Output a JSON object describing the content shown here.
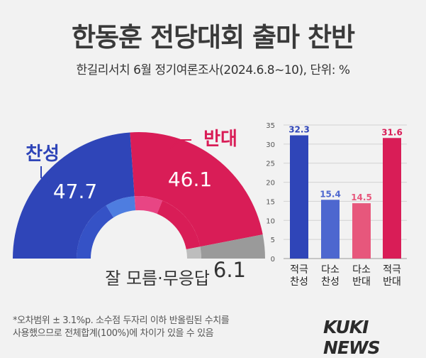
{
  "title": "한동훈 전당대회 출마 찬반",
  "subtitle": "한길리서치 6월 정기여론조사(2024.6.8~10), 단위: %",
  "footnote": {
    "line1": "*오차범위 ± 3.1%p. 소수점 두자리 이하 반올림된 수치를",
    "line2": "사용했으므로 전체합계(100%)에 차이가 있을 수 있음"
  },
  "brand": "KUKI NEWS",
  "colors": {
    "support": "#2f45b8",
    "oppose": "#d91d57",
    "unsure": "#9a9a9a",
    "mild_support": "#4d67cf",
    "mild_oppose": "#e7577c"
  },
  "chart_data": [
    {
      "type": "pie",
      "labels": [
        "찬성",
        "반대",
        "잘 모름·무응답"
      ],
      "values": [
        47.7,
        46.1,
        6.1
      ],
      "value_labels": [
        "47.7",
        "46.1",
        "6.1"
      ],
      "inner_split": {
        "labels": [
          "적극 찬성",
          "다소 찬성",
          "다소 반대",
          "적극 반대"
        ],
        "values": [
          32.3,
          15.4,
          14.5,
          31.6
        ]
      }
    },
    {
      "type": "bar",
      "categories": [
        "적극\n찬성",
        "다소\n찬성",
        "다소\n반대",
        "적극\n반대"
      ],
      "values": [
        32.3,
        15.4,
        14.5,
        31.6
      ],
      "value_labels": [
        "32.3",
        "15.4",
        "14.5",
        "31.6"
      ],
      "ylim": [
        0,
        35
      ],
      "yticks": [
        "0",
        "5",
        "10",
        "15",
        "20",
        "25",
        "30",
        "35"
      ],
      "grid": true,
      "legend": "none"
    }
  ]
}
